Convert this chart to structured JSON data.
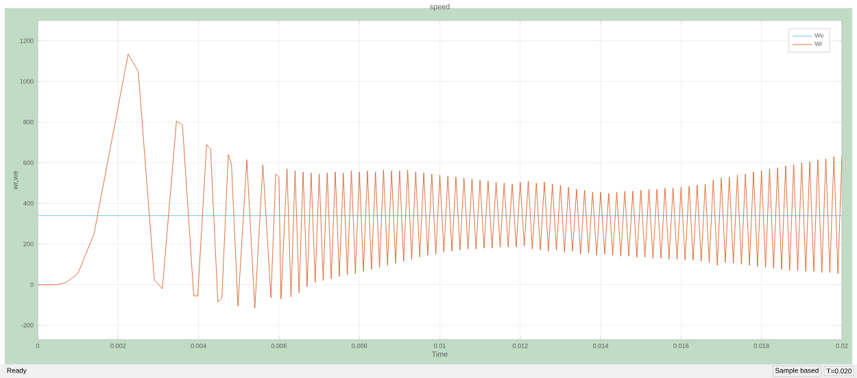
{
  "chart_data": {
    "type": "line",
    "title": "speed",
    "xlabel": "Time",
    "ylabel": "wr,we",
    "xlim": [
      0,
      0.02
    ],
    "ylim": [
      -270,
      1300
    ],
    "xticks": [
      0,
      0.002,
      0.004,
      0.006,
      0.008,
      0.01,
      0.012,
      0.014,
      0.016,
      0.018,
      0.02
    ],
    "yticks": [
      -200,
      0,
      200,
      400,
      600,
      800,
      1000,
      1200
    ],
    "grid": true,
    "legend": "top right",
    "marker": "none",
    "line_style": "solid",
    "annotations": [
      "Ready",
      "Sample based",
      "T=0.020"
    ],
    "series": [
      {
        "name": "We",
        "color": "#4db8e8",
        "x": [
          0,
          0.02
        ],
        "values": [
          340,
          340
        ]
      },
      {
        "name": "Wr",
        "color": "#d95319",
        "x": [
          0,
          0.0005,
          0.0007,
          0.001,
          0.0014,
          0.00225,
          0.0025,
          0.0029,
          0.0031,
          0.00345,
          0.0036,
          0.00388,
          0.00398,
          0.0042,
          0.0043,
          0.00448,
          0.00458,
          0.00474,
          0.00482,
          0.00498,
          0.0052,
          0.0054,
          0.0056,
          0.0058,
          0.00592,
          0.006,
          0.00605,
          0.0062,
          0.0063,
          0.0064,
          0.0065,
          0.0066,
          0.0067,
          0.0068,
          0.0069,
          0.007,
          0.0071,
          0.0072,
          0.0073,
          0.0074,
          0.0075,
          0.0076,
          0.0077,
          0.0078,
          0.0079,
          0.008,
          0.0081,
          0.0082,
          0.0083,
          0.0084,
          0.0085,
          0.0086,
          0.0087,
          0.0088,
          0.0089,
          0.009,
          0.0091,
          0.0092,
          0.0093,
          0.0094,
          0.0095,
          0.0096,
          0.0097,
          0.0098,
          0.0099,
          0.01,
          0.0101,
          0.0102,
          0.0103,
          0.0104,
          0.0105,
          0.0106,
          0.0107,
          0.0108,
          0.0109,
          0.011,
          0.0111,
          0.0112,
          0.0113,
          0.0114,
          0.0115,
          0.0116,
          0.0117,
          0.0118,
          0.0119,
          0.012,
          0.0121,
          0.0122,
          0.0123,
          0.0124,
          0.0125,
          0.0126,
          0.0127,
          0.0128,
          0.0129,
          0.013,
          0.0131,
          0.0132,
          0.0133,
          0.0134,
          0.0135,
          0.0136,
          0.0137,
          0.0138,
          0.0139,
          0.014,
          0.0141,
          0.0142,
          0.0143,
          0.0144,
          0.0145,
          0.0146,
          0.0147,
          0.0148,
          0.0149,
          0.015,
          0.0151,
          0.0152,
          0.0153,
          0.0154,
          0.0155,
          0.0156,
          0.0157,
          0.0158,
          0.0159,
          0.016,
          0.0161,
          0.0162,
          0.0163,
          0.0164,
          0.0165,
          0.0166,
          0.0167,
          0.0168,
          0.0169,
          0.017,
          0.0171,
          0.0172,
          0.0173,
          0.0174,
          0.0175,
          0.0176,
          0.0177,
          0.0178,
          0.0179,
          0.018,
          0.0181,
          0.0182,
          0.0183,
          0.0184,
          0.0185,
          0.0186,
          0.0187,
          0.0188,
          0.0189,
          0.019,
          0.0191,
          0.0192,
          0.0193,
          0.0194,
          0.0195,
          0.0196,
          0.0197,
          0.0198,
          0.0199,
          0.02
        ],
        "values": [
          0,
          0,
          10,
          55,
          250,
          1135,
          1050,
          25,
          -20,
          805,
          785,
          -55,
          -55,
          690,
          665,
          -85,
          -65,
          640,
          590,
          -105,
          615,
          -115,
          590,
          -65,
          545,
          530,
          -70,
          570,
          -60,
          560,
          -40,
          555,
          -10,
          550,
          10,
          545,
          20,
          550,
          30,
          555,
          40,
          550,
          50,
          560,
          55,
          555,
          65,
          560,
          75,
          555,
          85,
          565,
          95,
          560,
          105,
          560,
          115,
          565,
          125,
          555,
          135,
          550,
          145,
          545,
          150,
          540,
          160,
          535,
          165,
          530,
          170,
          525,
          175,
          520,
          175,
          515,
          180,
          510,
          180,
          505,
          185,
          500,
          185,
          495,
          185,
          505,
          190,
          510,
          175,
          500,
          170,
          505,
          165,
          495,
          170,
          490,
          160,
          480,
          165,
          470,
          150,
          465,
          155,
          455,
          145,
          455,
          150,
          450,
          145,
          455,
          140,
          460,
          140,
          460,
          135,
          465,
          135,
          470,
          130,
          470,
          130,
          475,
          125,
          475,
          125,
          480,
          120,
          485,
          120,
          490,
          115,
          495,
          110,
          515,
          95,
          525,
          110,
          530,
          105,
          540,
          100,
          545,
          95,
          555,
          90,
          560,
          85,
          570,
          80,
          575,
          75,
          585,
          70,
          590,
          70,
          600,
          65,
          605,
          65,
          615,
          60,
          620,
          60,
          630,
          55,
          635
        ]
      }
    ]
  }
}
